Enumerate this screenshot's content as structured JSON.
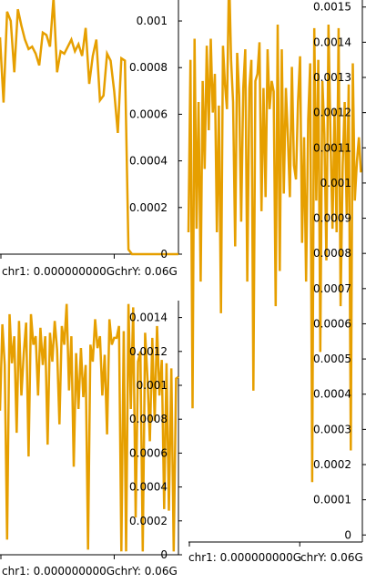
{
  "chart_data": [
    {
      "type": "line",
      "panel": "top-left",
      "x_tick_labels": [
        "chr1: 0.000000000G",
        "chrY: 0.06G"
      ],
      "y_ticks": [
        {
          "value": 0,
          "label": "0"
        },
        {
          "value": 0.0002,
          "label": "0.0002"
        },
        {
          "value": 0.0004,
          "label": "0.0004"
        },
        {
          "value": 0.0006,
          "label": "0.0006"
        },
        {
          "value": 0.0008,
          "label": "0.0008"
        },
        {
          "value": 0.001,
          "label": "0.001"
        }
      ],
      "ylim": [
        0,
        0.00109
      ],
      "xlim": [
        0,
        0.06
      ],
      "grid": false,
      "y_axis_side": "right",
      "series": [
        {
          "color": "#e69f00",
          "x": [
            0,
            0.0012,
            0.0024,
            0.0036,
            0.0048,
            0.006,
            0.0072,
            0.0084,
            0.0096,
            0.0108,
            0.012,
            0.0132,
            0.0144,
            0.0156,
            0.0168,
            0.018,
            0.0192,
            0.0204,
            0.0216,
            0.0228,
            0.024,
            0.0252,
            0.0264,
            0.0276,
            0.0288,
            0.03,
            0.0312,
            0.0324,
            0.0336,
            0.0348,
            0.036,
            0.0372,
            0.0384,
            0.0396,
            0.0408,
            0.042,
            0.0432,
            0.0444,
            0.0456,
            0.0468,
            0.048,
            0.0492,
            0.0504,
            0.0516,
            0.0528,
            0.054,
            0.0552,
            0.0564,
            0.0576,
            0.0588,
            0.06
          ],
          "y": [
            0.00093,
            0.00065,
            0.00104,
            0.001,
            0.00078,
            0.00105,
            0.00098,
            0.00092,
            0.00088,
            0.00089,
            0.00086,
            0.00081,
            0.00095,
            0.00094,
            0.00089,
            0.0011,
            0.00078,
            0.00087,
            0.00086,
            0.00089,
            0.00092,
            0.00087,
            0.0009,
            0.00085,
            0.00097,
            0.00073,
            0.00085,
            0.00092,
            0.00066,
            0.00068,
            0.00086,
            0.00083,
            0.0007,
            0.00052,
            0.00084,
            0.00083,
            2e-05,
            0.0,
            0.0,
            0.0,
            0.0,
            0.0,
            0.0,
            0.0,
            0.0,
            0.0,
            0.0,
            0.0,
            0.0,
            0.0,
            0.0
          ]
        }
      ]
    },
    {
      "type": "line",
      "panel": "bottom-left",
      "x_tick_labels": [
        "chr1: 0.000000000G",
        "chrY: 0.06G"
      ],
      "y_ticks": [
        {
          "value": 0,
          "label": "0"
        },
        {
          "value": 0.0002,
          "label": "0.0002"
        },
        {
          "value": 0.0004,
          "label": "0.0004"
        },
        {
          "value": 0.0006,
          "label": "0.0006"
        },
        {
          "value": 0.0008,
          "label": "0.0008"
        },
        {
          "value": 0.001,
          "label": "0.001"
        },
        {
          "value": 0.0012,
          "label": "0.0012"
        },
        {
          "value": 0.0014,
          "label": "0.0014"
        }
      ],
      "ylim": [
        0,
        0.0015
      ],
      "xlim": [
        0,
        0.06
      ],
      "grid": false,
      "y_axis_side": "right",
      "series": [
        {
          "color": "#e69f00",
          "x": [
            0,
            0.0008,
            0.0016,
            0.0024,
            0.0032,
            0.004,
            0.0048,
            0.0056,
            0.0064,
            0.0072,
            0.008,
            0.0088,
            0.0096,
            0.0104,
            0.0112,
            0.012,
            0.0128,
            0.0136,
            0.0144,
            0.0152,
            0.016,
            0.0168,
            0.0176,
            0.0184,
            0.0192,
            0.02,
            0.0208,
            0.0216,
            0.0224,
            0.0232,
            0.024,
            0.0248,
            0.0256,
            0.0264,
            0.0272,
            0.028,
            0.0288,
            0.0296,
            0.0304,
            0.0312,
            0.032,
            0.0328,
            0.0336,
            0.0344,
            0.0352,
            0.036,
            0.0368,
            0.0376,
            0.0384,
            0.0392,
            0.04,
            0.0408,
            0.0416,
            0.0424,
            0.0432,
            0.044,
            0.0448,
            0.0456,
            0.0464,
            0.0472,
            0.048,
            0.0488,
            0.0496,
            0.0504,
            0.0512,
            0.052,
            0.0528,
            0.0536,
            0.0544,
            0.0552,
            0.056,
            0.0568,
            0.0576,
            0.0584,
            0.0592,
            0.06
          ],
          "y": [
            0.00085,
            0.00136,
            0.00112,
            9e-05,
            0.00142,
            0.00113,
            0.00129,
            0.00072,
            0.00138,
            0.00094,
            0.00119,
            0.00137,
            0.00058,
            0.00142,
            0.00124,
            0.00129,
            0.00094,
            0.00134,
            0.00112,
            0.00129,
            0.00065,
            0.00131,
            0.00114,
            0.00138,
            0.00121,
            0.00077,
            0.00135,
            0.00124,
            0.00148,
            0.00097,
            0.00129,
            0.00052,
            0.00119,
            0.00086,
            0.00122,
            0.00093,
            0.00112,
            3e-05,
            0.00124,
            0.00114,
            0.00139,
            0.00122,
            0.00129,
            0.00094,
            0.00118,
            0.00071,
            0.00139,
            0.00124,
            0.00128,
            0.00128,
            0.00135,
            2e-05,
            0.00132,
            2e-05,
            0.00148,
            0.00086,
            0.00146,
            0.00022,
            0.00114,
            0.0012,
            2e-05,
            0.00131,
            0.00104,
            0.00067,
            0.00128,
            0.00079,
            0.00135,
            0.00094,
            0.00115,
            0.00027,
            0.00113,
            0.00026,
            0.0011,
            2e-05,
            0.00104,
            0.00105
          ]
        }
      ]
    },
    {
      "type": "line",
      "panel": "right",
      "x_tick_labels": [
        "chr1: 0.000000000G",
        "chrY: 0.06G"
      ],
      "y_ticks": [
        {
          "value": 0,
          "label": "0"
        },
        {
          "value": 0.0001,
          "label": "0.0001"
        },
        {
          "value": 0.0002,
          "label": "0.0002"
        },
        {
          "value": 0.0003,
          "label": "0.0003"
        },
        {
          "value": 0.0004,
          "label": "0.0004"
        },
        {
          "value": 0.0005,
          "label": "0.0005"
        },
        {
          "value": 0.0006,
          "label": "0.0006"
        },
        {
          "value": 0.0007,
          "label": "0.0007"
        },
        {
          "value": 0.0008,
          "label": "0.0008"
        },
        {
          "value": 0.0009,
          "label": "0.0009"
        },
        {
          "value": 0.001,
          "label": "0.001"
        },
        {
          "value": 0.0011,
          "label": "0.0011"
        },
        {
          "value": 0.0012,
          "label": "0.0012"
        },
        {
          "value": 0.0013,
          "label": "0.0013"
        },
        {
          "value": 0.0014,
          "label": "0.0014"
        },
        {
          "value": 0.0015,
          "label": "0.0015"
        }
      ],
      "ylim": [
        -2e-05,
        0.00152
      ],
      "xlim": [
        0,
        0.06
      ],
      "grid": false,
      "y_axis_side": "right",
      "series": [
        {
          "color": "#e69f00",
          "x": [
            0,
            0.0007,
            0.0014,
            0.0021,
            0.0028,
            0.0035,
            0.0042,
            0.0049,
            0.0056,
            0.0063,
            0.007,
            0.0077,
            0.0084,
            0.0091,
            0.0098,
            0.0105,
            0.0112,
            0.0119,
            0.0126,
            0.0133,
            0.014,
            0.0147,
            0.0154,
            0.0161,
            0.0168,
            0.0175,
            0.0182,
            0.0189,
            0.0196,
            0.0203,
            0.021,
            0.0217,
            0.0224,
            0.0231,
            0.0238,
            0.0245,
            0.0252,
            0.0259,
            0.0266,
            0.0273,
            0.028,
            0.0287,
            0.0294,
            0.0301,
            0.0308,
            0.0315,
            0.0322,
            0.0329,
            0.0336,
            0.0343,
            0.035,
            0.0357,
            0.0364,
            0.0371,
            0.0378,
            0.0385,
            0.0392,
            0.0399,
            0.0406,
            0.0413,
            0.042,
            0.0427,
            0.0434,
            0.0441,
            0.0448,
            0.0455,
            0.0462,
            0.0469,
            0.0476,
            0.0483,
            0.049,
            0.0497,
            0.0504,
            0.0511,
            0.0518,
            0.0525,
            0.0532,
            0.0539,
            0.0546,
            0.0553,
            0.056,
            0.0567,
            0.0574,
            0.0581,
            0.0588,
            0.0595
          ],
          "y": [
            0.00086,
            0.00135,
            0.00036,
            0.00141,
            0.00087,
            0.00123,
            0.00072,
            0.00129,
            0.00104,
            0.00139,
            0.00115,
            0.00141,
            0.0012,
            0.00131,
            0.00086,
            0.00122,
            0.00063,
            0.00139,
            0.00128,
            0.00121,
            0.0016,
            0.00135,
            0.00123,
            0.00082,
            0.00137,
            0.00125,
            0.00089,
            0.00127,
            0.00138,
            0.00072,
            0.00127,
            0.00135,
            0.00041,
            0.00129,
            0.00131,
            0.0014,
            0.00092,
            0.00127,
            0.00096,
            0.00138,
            0.00121,
            0.00129,
            0.00126,
            0.00065,
            0.00145,
            0.00075,
            0.00138,
            0.00097,
            0.00127,
            0.00113,
            0.00096,
            0.00133,
            0.00105,
            0.00101,
            0.00123,
            0.00136,
            0.00083,
            0.00113,
            0.00072,
            0.00118,
            0.00134,
            0.00015,
            0.00144,
            0.00095,
            0.00135,
            0.00052,
            0.00129,
            0.00114,
            0.00078,
            0.00145,
            0.00113,
            0.00087,
            0.00121,
            0.00086,
            0.00144,
            0.00065,
            0.00105,
            0.00123,
            0.00091,
            0.00128,
            0.00024,
            0.00134,
            0.00095,
            0.00106,
            0.00113,
            0.00103
          ]
        }
      ]
    }
  ]
}
